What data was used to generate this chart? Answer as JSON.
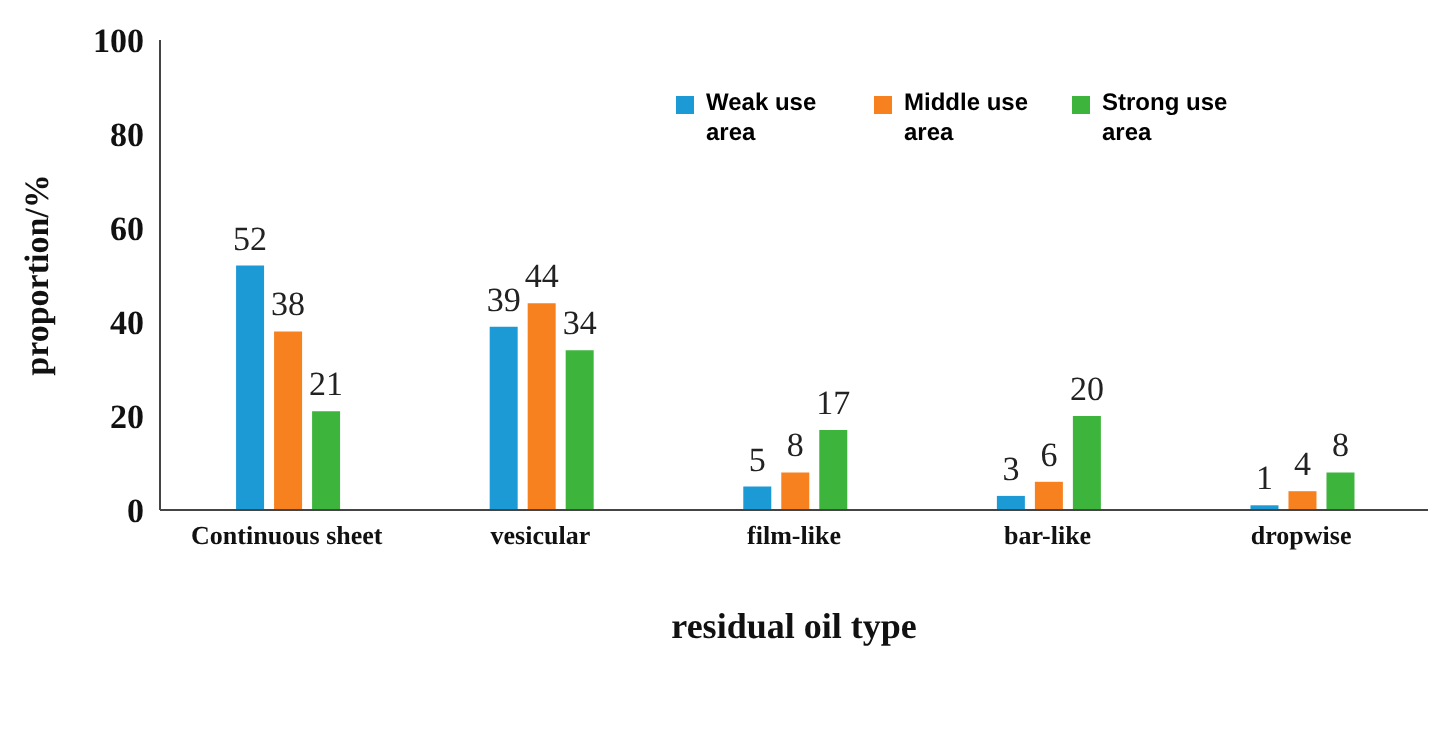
{
  "chart_data": {
    "type": "bar",
    "xlabel": "residual oil type",
    "ylabel": "proportion/%",
    "categories": [
      "Continuous sheet",
      "vesicular",
      "film-like",
      "bar-like",
      "dropwise"
    ],
    "series": [
      {
        "name": "Weak use area",
        "color": "#1b9ad6",
        "values": [
          52,
          39,
          5,
          3,
          1
        ]
      },
      {
        "name": "Middle use area",
        "color": "#f7811f",
        "values": [
          38,
          44,
          8,
          6,
          4
        ]
      },
      {
        "name": "Strong use area",
        "color": "#3db53d",
        "values": [
          21,
          34,
          17,
          20,
          8
        ]
      }
    ],
    "ylim": [
      0,
      100
    ],
    "yticks": [
      0,
      20,
      40,
      60,
      80,
      100
    ],
    "grid": false,
    "legend": "top right",
    "data_labels": true
  }
}
